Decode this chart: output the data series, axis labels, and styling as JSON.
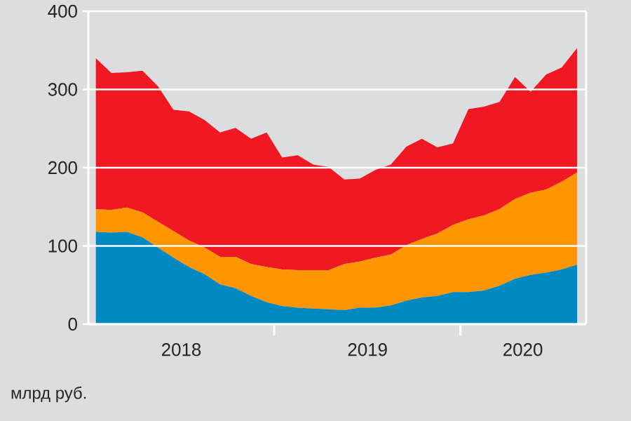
{
  "chart_data": {
    "type": "area",
    "stacked": true,
    "grid": "y",
    "x": [
      "2018-01",
      "2018-02",
      "2018-03",
      "2018-04",
      "2018-05",
      "2018-06",
      "2018-07",
      "2018-08",
      "2018-09",
      "2018-10",
      "2018-11",
      "2018-12",
      "2019-01",
      "2019-02",
      "2019-03",
      "2019-04",
      "2019-05",
      "2019-06",
      "2019-07",
      "2019-08",
      "2019-09",
      "2019-10",
      "2019-11",
      "2019-12",
      "2020-01",
      "2020-02",
      "2020-03",
      "2020-04",
      "2020-05",
      "2020-06",
      "2020-07",
      "2020-08"
    ],
    "series": [
      {
        "color": "#0089c0",
        "values": [
          118,
          117,
          118,
          111,
          98,
          85,
          73,
          64,
          51,
          46,
          36,
          28,
          23,
          21,
          20,
          19,
          18,
          21,
          21,
          24,
          30,
          34,
          36,
          41,
          41,
          43,
          49,
          58,
          63,
          66,
          70,
          76
        ]
      },
      {
        "color": "#ff9500",
        "values": [
          29,
          29,
          31,
          32,
          33,
          34,
          34,
          34,
          35,
          40,
          41,
          45,
          47,
          48,
          49,
          50,
          59,
          59,
          64,
          65,
          71,
          75,
          80,
          86,
          93,
          96,
          98,
          102,
          105,
          106,
          112,
          118
        ]
      },
      {
        "color": "#f01823",
        "values": [
          193,
          175,
          173,
          181,
          173,
          155,
          165,
          163,
          159,
          165,
          160,
          172,
          143,
          147,
          135,
          132,
          108,
          106,
          112,
          115,
          126,
          128,
          110,
          104,
          141,
          139,
          137,
          156,
          129,
          147,
          146,
          159
        ]
      }
    ],
    "xlim": [
      "2017-12-17",
      "2020-08-19"
    ],
    "xticks": [
      {
        "value": "2018-06-16",
        "label": "2018"
      },
      {
        "value": "2018-12-16",
        "label": null
      },
      {
        "value": "2019-06-16",
        "label": "2019"
      },
      {
        "value": "2019-12-16",
        "label": null
      },
      {
        "value": "2020-04-16",
        "label": "2020"
      }
    ],
    "ylim": [
      0,
      400
    ],
    "yticks": [
      0,
      100,
      200,
      300,
      400
    ],
    "annotations": [
      "млрд руб."
    ]
  }
}
